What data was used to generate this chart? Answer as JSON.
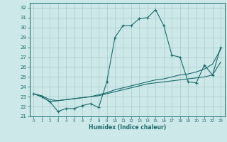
{
  "xlabel": "Humidex (Indice chaleur)",
  "ylabel": "",
  "background_color": "#cce8e8",
  "grid_color": "#aacccc",
  "line_color": "#1a6b6b",
  "xlim": [
    -0.5,
    23.5
  ],
  "ylim": [
    21,
    32.5
  ],
  "xticks": [
    0,
    1,
    2,
    3,
    4,
    5,
    6,
    7,
    8,
    9,
    10,
    11,
    12,
    13,
    14,
    15,
    16,
    17,
    18,
    19,
    20,
    21,
    22,
    23
  ],
  "yticks": [
    21,
    22,
    23,
    24,
    25,
    26,
    27,
    28,
    29,
    30,
    31,
    32
  ],
  "series1_x": [
    0,
    1,
    2,
    3,
    4,
    5,
    6,
    7,
    8,
    9,
    10,
    11,
    12,
    13,
    14,
    15,
    16,
    17,
    18,
    19,
    20,
    21,
    22,
    23
  ],
  "series1_y": [
    23.3,
    23.0,
    22.5,
    21.5,
    21.8,
    21.8,
    22.1,
    22.3,
    21.9,
    24.5,
    29.0,
    30.2,
    30.2,
    30.9,
    31.0,
    31.8,
    30.2,
    27.2,
    27.0,
    24.5,
    24.4,
    26.2,
    25.2,
    28.0
  ],
  "series2_x": [
    0,
    1,
    2,
    3,
    4,
    5,
    6,
    7,
    8,
    9,
    10,
    11,
    12,
    13,
    14,
    15,
    16,
    17,
    18,
    19,
    20,
    21,
    22,
    23
  ],
  "series2_y": [
    23.3,
    23.0,
    22.5,
    22.6,
    22.7,
    22.8,
    22.9,
    23.0,
    23.1,
    23.3,
    23.5,
    23.7,
    23.9,
    24.1,
    24.3,
    24.4,
    24.5,
    24.6,
    24.7,
    24.8,
    24.9,
    25.0,
    25.2,
    26.5
  ],
  "series3_x": [
    0,
    1,
    2,
    3,
    4,
    5,
    6,
    7,
    8,
    9,
    10,
    11,
    12,
    13,
    14,
    15,
    16,
    17,
    18,
    19,
    20,
    21,
    22,
    23
  ],
  "series3_y": [
    23.3,
    23.1,
    22.7,
    22.6,
    22.7,
    22.8,
    22.9,
    23.0,
    23.2,
    23.4,
    23.7,
    23.9,
    24.1,
    24.3,
    24.5,
    24.7,
    24.8,
    25.0,
    25.2,
    25.3,
    25.5,
    25.8,
    26.3,
    27.8
  ]
}
